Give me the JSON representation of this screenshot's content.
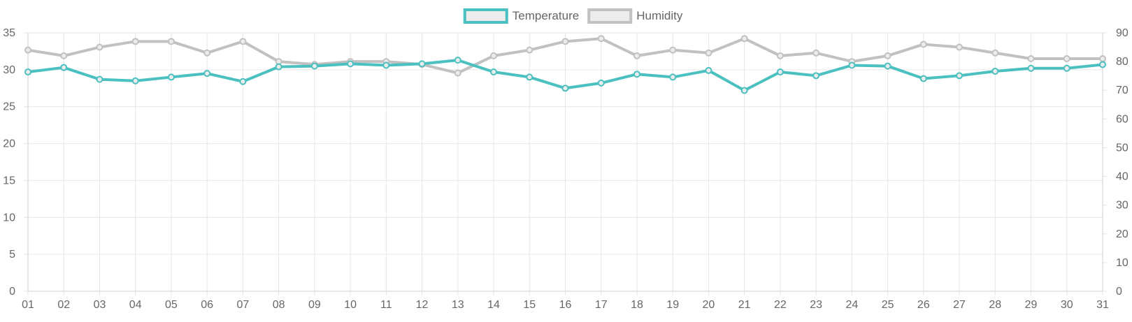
{
  "chart_data": {
    "type": "line",
    "title": "",
    "xlabel": "",
    "ylabel": "",
    "categories": [
      "01",
      "02",
      "03",
      "04",
      "05",
      "06",
      "07",
      "08",
      "09",
      "10",
      "11",
      "12",
      "13",
      "14",
      "15",
      "16",
      "17",
      "18",
      "19",
      "20",
      "21",
      "22",
      "23",
      "24",
      "25",
      "26",
      "27",
      "28",
      "29",
      "30",
      "31"
    ],
    "y_left": {
      "ylim": [
        0,
        35
      ],
      "ticks": [
        "0",
        "5",
        "10",
        "15",
        "20",
        "25",
        "30",
        "35"
      ]
    },
    "y_right": {
      "ylim": [
        0,
        90
      ],
      "ticks": [
        "0",
        "10",
        "20",
        "30",
        "40",
        "50",
        "60",
        "70",
        "80",
        "90"
      ]
    },
    "grid": true,
    "legend_position": "top-center",
    "series": [
      {
        "name": "Temperature",
        "axis": "left",
        "color": "#4bc0c0",
        "values": [
          29.7,
          30.3,
          28.7,
          28.5,
          29.0,
          29.5,
          28.4,
          30.4,
          30.5,
          30.8,
          30.6,
          30.8,
          31.3,
          29.7,
          29.0,
          27.5,
          28.2,
          29.4,
          29.0,
          29.9,
          27.2,
          29.7,
          29.2,
          30.6,
          30.5,
          28.8,
          29.2,
          29.8,
          30.2,
          30.2,
          30.7
        ]
      },
      {
        "name": "Humidity",
        "axis": "right",
        "color": "#c1c1c1",
        "values": [
          84,
          82,
          85,
          87,
          87,
          83,
          87,
          80,
          79,
          80,
          80,
          79,
          76,
          82,
          84,
          87,
          88,
          82,
          84,
          83,
          88,
          82,
          83,
          80,
          82,
          86,
          85,
          83,
          81,
          81,
          81
        ]
      }
    ]
  }
}
